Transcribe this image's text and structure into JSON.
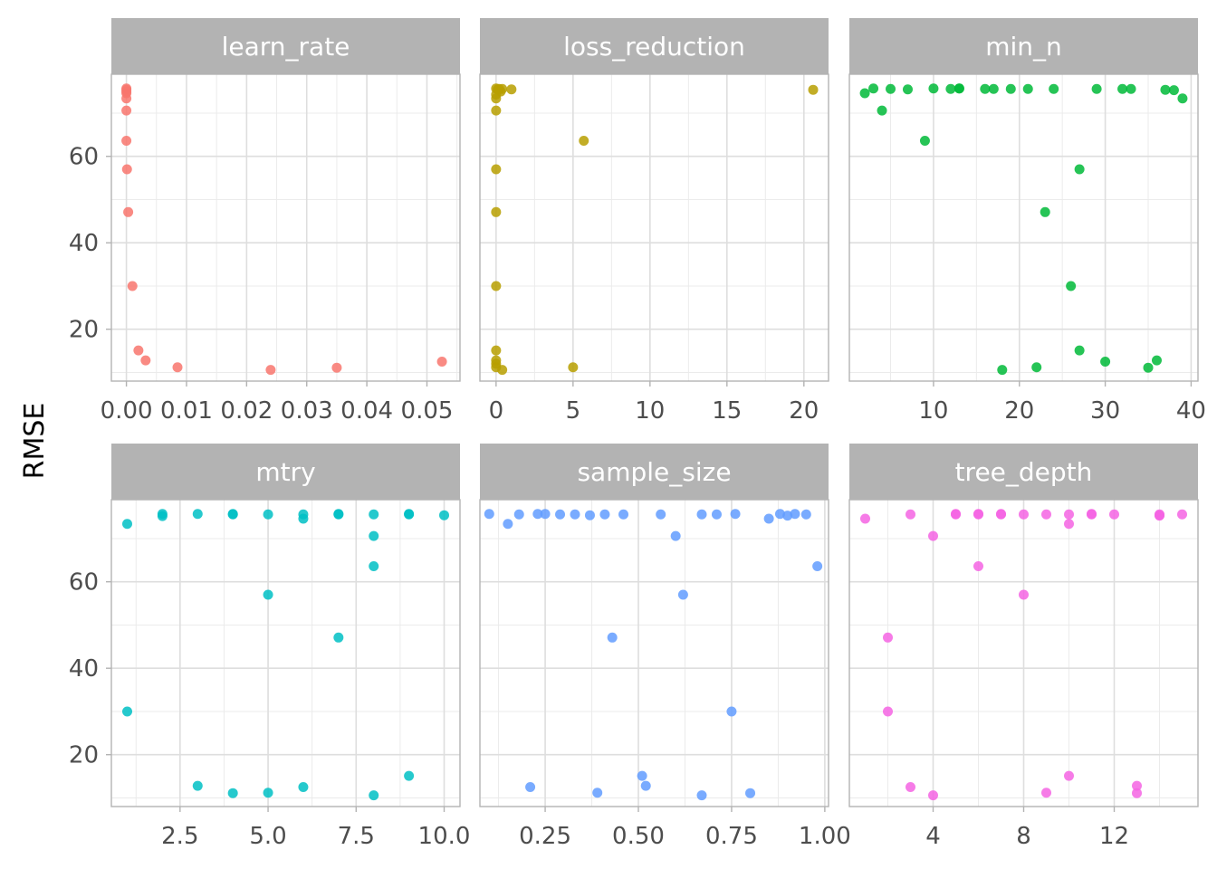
{
  "chart_data": {
    "type": "scatter",
    "layout": "facet-grid 2x3, free x scales, shared y",
    "ylabel": "RMSE",
    "xlabel": "",
    "ylim": [
      8,
      79
    ],
    "y_ticks": [
      20,
      40,
      60
    ],
    "grid": true,
    "legend": "none",
    "panels": [
      {
        "strip": "learn_rate",
        "color": "#F8766D",
        "xlim": [
          -0.0025,
          0.0555
        ],
        "x_ticks": [
          0.0,
          0.01,
          0.02,
          0.03,
          0.04,
          0.05
        ],
        "x_tick_labels": [
          "0.00",
          "0.01",
          "0.02",
          "0.03",
          "0.04",
          "0.05"
        ],
        "points": [
          [
            0.0,
            75.7
          ],
          [
            0.0,
            75.4
          ],
          [
            0.0,
            75.0
          ],
          [
            0.0,
            74.6
          ],
          [
            0.0,
            73.4
          ],
          [
            0.0,
            70.6
          ],
          [
            0.0,
            63.6
          ],
          [
            0.0001,
            57.0
          ],
          [
            0.0003,
            47.1
          ],
          [
            0.001,
            30.0
          ],
          [
            0.002,
            15.1
          ],
          [
            0.0032,
            12.8
          ],
          [
            0.0085,
            11.2
          ],
          [
            0.024,
            10.6
          ],
          [
            0.035,
            11.1
          ],
          [
            0.0525,
            12.5
          ]
        ]
      },
      {
        "strip": "loss_reduction",
        "color": "#B79F00",
        "xlim": [
          -1.05,
          21.6
        ],
        "x_ticks": [
          0,
          5,
          10,
          15,
          20
        ],
        "x_tick_labels": [
          "0",
          "5",
          "10",
          "15",
          "20"
        ],
        "points": [
          [
            0.0,
            75.7
          ],
          [
            0.1,
            75.5
          ],
          [
            0.2,
            75.6
          ],
          [
            0.3,
            75.0
          ],
          [
            0.4,
            75.6
          ],
          [
            0.0,
            74.3
          ],
          [
            0.0,
            73.4
          ],
          [
            0.0,
            70.6
          ],
          [
            0.0,
            57.0
          ],
          [
            0.0,
            47.1
          ],
          [
            0.0,
            30.0
          ],
          [
            0.0,
            15.1
          ],
          [
            0.0,
            12.8
          ],
          [
            0.0,
            12.0
          ],
          [
            0.0,
            11.2
          ],
          [
            0.4,
            10.6
          ],
          [
            1.0,
            75.5
          ],
          [
            5.7,
            63.6
          ],
          [
            5.0,
            11.2
          ],
          [
            20.6,
            75.4
          ]
        ]
      },
      {
        "strip": "min_n",
        "color": "#00BA38",
        "xlim": [
          0.2,
          40.8
        ],
        "x_ticks": [
          10,
          20,
          30,
          40
        ],
        "x_tick_labels": [
          "10",
          "20",
          "30",
          "40"
        ],
        "points": [
          [
            2,
            74.6
          ],
          [
            3,
            75.7
          ],
          [
            4,
            70.6
          ],
          [
            5,
            75.6
          ],
          [
            7,
            75.5
          ],
          [
            9,
            63.6
          ],
          [
            10,
            75.7
          ],
          [
            12,
            75.6
          ],
          [
            13,
            75.7
          ],
          [
            13,
            75.7
          ],
          [
            16,
            75.6
          ],
          [
            17,
            75.6
          ],
          [
            18,
            10.6
          ],
          [
            19,
            75.6
          ],
          [
            21,
            75.6
          ],
          [
            22,
            11.2
          ],
          [
            23,
            47.1
          ],
          [
            24,
            75.6
          ],
          [
            26,
            30.0
          ],
          [
            27,
            57.0
          ],
          [
            27,
            15.1
          ],
          [
            29,
            75.6
          ],
          [
            30,
            12.5
          ],
          [
            32,
            75.6
          ],
          [
            33,
            75.6
          ],
          [
            35,
            11.1
          ],
          [
            36,
            12.8
          ],
          [
            37,
            75.4
          ],
          [
            38,
            75.3
          ],
          [
            39,
            73.4
          ]
        ]
      },
      {
        "strip": "mtry",
        "color": "#00BFC4",
        "xlim": [
          0.55,
          10.45
        ],
        "x_ticks": [
          2.5,
          5.0,
          7.5,
          10.0
        ],
        "x_tick_labels": [
          "2.5",
          "5.0",
          "7.5",
          "10.0"
        ],
        "points": [
          [
            1,
            73.4
          ],
          [
            1,
            30.0
          ],
          [
            2,
            75.7
          ],
          [
            2,
            75.2
          ],
          [
            3,
            75.7
          ],
          [
            3,
            12.8
          ],
          [
            4,
            75.6
          ],
          [
            4,
            75.7
          ],
          [
            4,
            11.1
          ],
          [
            5,
            75.6
          ],
          [
            5,
            57.0
          ],
          [
            5,
            11.2
          ],
          [
            6,
            75.6
          ],
          [
            6,
            74.6
          ],
          [
            6,
            12.5
          ],
          [
            7,
            75.6
          ],
          [
            7,
            75.7
          ],
          [
            7,
            47.1
          ],
          [
            8,
            75.6
          ],
          [
            8,
            70.6
          ],
          [
            8,
            63.6
          ],
          [
            8,
            10.6
          ],
          [
            9,
            75.6
          ],
          [
            9,
            75.7
          ],
          [
            9,
            15.1
          ],
          [
            10,
            75.4
          ]
        ]
      },
      {
        "strip": "sample_size",
        "color": "#619CFF",
        "xlim": [
          0.075,
          1.01
        ],
        "x_ticks": [
          0.25,
          0.5,
          0.75,
          1.0
        ],
        "x_tick_labels": [
          "0.25",
          "0.50",
          "0.75",
          "1.00"
        ],
        "points": [
          [
            0.1,
            75.7
          ],
          [
            0.15,
            73.4
          ],
          [
            0.18,
            75.6
          ],
          [
            0.21,
            12.5
          ],
          [
            0.23,
            75.7
          ],
          [
            0.25,
            75.7
          ],
          [
            0.29,
            75.6
          ],
          [
            0.33,
            75.6
          ],
          [
            0.37,
            75.4
          ],
          [
            0.39,
            11.2
          ],
          [
            0.41,
            75.6
          ],
          [
            0.43,
            47.1
          ],
          [
            0.46,
            75.6
          ],
          [
            0.51,
            15.1
          ],
          [
            0.52,
            12.8
          ],
          [
            0.56,
            75.6
          ],
          [
            0.6,
            70.6
          ],
          [
            0.62,
            57.0
          ],
          [
            0.67,
            75.6
          ],
          [
            0.67,
            10.6
          ],
          [
            0.71,
            75.6
          ],
          [
            0.75,
            30.0
          ],
          [
            0.76,
            75.7
          ],
          [
            0.8,
            11.1
          ],
          [
            0.85,
            74.6
          ],
          [
            0.88,
            75.7
          ],
          [
            0.9,
            75.3
          ],
          [
            0.92,
            75.7
          ],
          [
            0.95,
            75.6
          ],
          [
            0.98,
            63.6
          ]
        ]
      },
      {
        "strip": "tree_depth",
        "color": "#F564E3",
        "xlim": [
          0.3,
          15.7
        ],
        "x_ticks": [
          4,
          8,
          12
        ],
        "x_tick_labels": [
          "4",
          "8",
          "12"
        ],
        "points": [
          [
            1,
            74.6
          ],
          [
            2,
            47.1
          ],
          [
            2,
            30.0
          ],
          [
            3,
            75.6
          ],
          [
            3,
            12.5
          ],
          [
            4,
            70.6
          ],
          [
            4,
            10.6
          ],
          [
            5,
            75.6
          ],
          [
            5,
            75.7
          ],
          [
            6,
            75.6
          ],
          [
            6,
            75.7
          ],
          [
            6,
            63.6
          ],
          [
            7,
            75.6
          ],
          [
            7,
            75.7
          ],
          [
            8,
            75.6
          ],
          [
            8,
            57.0
          ],
          [
            9,
            75.6
          ],
          [
            9,
            11.2
          ],
          [
            10,
            75.6
          ],
          [
            10,
            73.4
          ],
          [
            10,
            15.1
          ],
          [
            11,
            75.6
          ],
          [
            11,
            75.7
          ],
          [
            12,
            75.6
          ],
          [
            13,
            12.8
          ],
          [
            13,
            11.1
          ],
          [
            14,
            75.4
          ],
          [
            14,
            75.6
          ],
          [
            14,
            75.3
          ],
          [
            15,
            75.6
          ]
        ]
      }
    ]
  }
}
